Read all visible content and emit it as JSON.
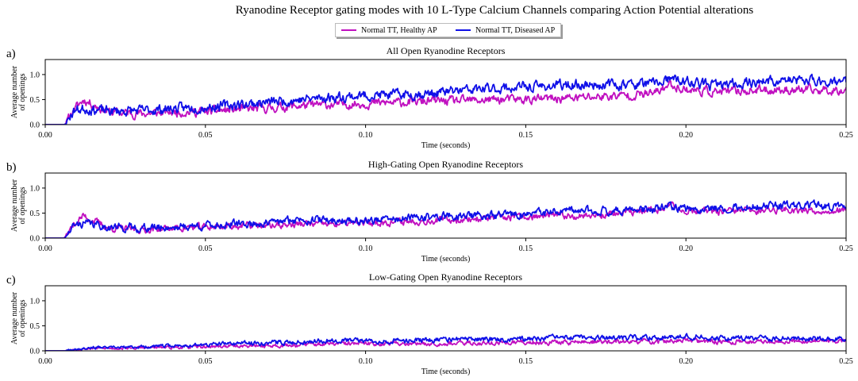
{
  "title": "Ryanodine Receptor gating modes with 10 L-Type Calcium Channels comparing Action Potential alterations",
  "legend": [
    {
      "name": "Normal TT, Healthy AP",
      "color": "#c010c0"
    },
    {
      "name": "Normal TT, Diseased AP",
      "color": "#1010e8"
    }
  ],
  "chart_data": [
    {
      "type": "line",
      "panel_label": "a)",
      "title": "All Open Ryanodine Receptors",
      "xlabel": "Time (seconds)",
      "ylabel": [
        "Average number",
        "of openings"
      ],
      "xlim": [
        0.0,
        0.25
      ],
      "ylim": [
        0.0,
        1.3
      ],
      "xticks": [
        "0.00",
        "0.05",
        "0.10",
        "0.15",
        "0.20",
        "0.25"
      ],
      "yticks": [
        "0.0",
        "0.5",
        "1.0"
      ],
      "series": [
        {
          "name": "Normal TT, Healthy AP",
          "color": "#c010c0",
          "x": [
            0.0,
            0.006,
            0.009,
            0.012,
            0.015,
            0.02,
            0.03,
            0.04,
            0.05,
            0.06,
            0.07,
            0.08,
            0.09,
            0.1,
            0.11,
            0.12,
            0.13,
            0.14,
            0.15,
            0.16,
            0.17,
            0.18,
            0.19,
            0.195,
            0.2,
            0.21,
            0.22,
            0.23,
            0.24,
            0.25
          ],
          "y": [
            0.0,
            0.0,
            0.3,
            0.5,
            0.4,
            0.25,
            0.22,
            0.25,
            0.26,
            0.3,
            0.33,
            0.38,
            0.4,
            0.42,
            0.44,
            0.47,
            0.47,
            0.5,
            0.5,
            0.52,
            0.55,
            0.58,
            0.62,
            0.8,
            0.7,
            0.65,
            0.68,
            0.7,
            0.68,
            0.7
          ],
          "noise": 0.09,
          "seed": 11
        },
        {
          "name": "Normal TT, Diseased AP",
          "color": "#1010e8",
          "x": [
            0.0,
            0.006,
            0.009,
            0.012,
            0.015,
            0.02,
            0.03,
            0.04,
            0.05,
            0.06,
            0.07,
            0.08,
            0.09,
            0.1,
            0.11,
            0.12,
            0.13,
            0.14,
            0.15,
            0.16,
            0.17,
            0.18,
            0.19,
            0.195,
            0.2,
            0.21,
            0.22,
            0.23,
            0.24,
            0.25
          ],
          "y": [
            0.0,
            0.0,
            0.28,
            0.32,
            0.3,
            0.27,
            0.28,
            0.32,
            0.35,
            0.4,
            0.45,
            0.5,
            0.55,
            0.58,
            0.6,
            0.62,
            0.68,
            0.72,
            0.75,
            0.78,
            0.8,
            0.8,
            0.82,
            0.9,
            0.85,
            0.78,
            0.85,
            0.88,
            0.88,
            0.85
          ],
          "noise": 0.1,
          "seed": 23
        }
      ]
    },
    {
      "type": "line",
      "panel_label": "b)",
      "title": "High-Gating Open Ryanodine Receptors",
      "xlabel": "Time (seconds)",
      "ylabel": [
        "Average number",
        "of openings"
      ],
      "xlim": [
        0.0,
        0.25
      ],
      "ylim": [
        0.0,
        1.3
      ],
      "xticks": [
        "0.00",
        "0.05",
        "0.10",
        "0.15",
        "0.20",
        "0.25"
      ],
      "yticks": [
        "0.0",
        "0.5",
        "1.0"
      ],
      "series": [
        {
          "name": "Normal TT, Healthy AP",
          "color": "#c010c0",
          "x": [
            0.0,
            0.006,
            0.009,
            0.012,
            0.015,
            0.02,
            0.03,
            0.04,
            0.05,
            0.06,
            0.07,
            0.08,
            0.09,
            0.1,
            0.11,
            0.12,
            0.13,
            0.14,
            0.15,
            0.16,
            0.17,
            0.18,
            0.19,
            0.195,
            0.2,
            0.21,
            0.22,
            0.23,
            0.24,
            0.25
          ],
          "y": [
            0.0,
            0.0,
            0.28,
            0.45,
            0.35,
            0.2,
            0.17,
            0.2,
            0.22,
            0.25,
            0.25,
            0.28,
            0.28,
            0.3,
            0.33,
            0.35,
            0.38,
            0.4,
            0.42,
            0.45,
            0.45,
            0.5,
            0.55,
            0.65,
            0.55,
            0.52,
            0.55,
            0.58,
            0.55,
            0.55
          ],
          "noise": 0.07,
          "seed": 37
        },
        {
          "name": "Normal TT, Diseased AP",
          "color": "#1010e8",
          "x": [
            0.0,
            0.006,
            0.009,
            0.012,
            0.015,
            0.02,
            0.03,
            0.04,
            0.05,
            0.06,
            0.07,
            0.08,
            0.09,
            0.1,
            0.11,
            0.12,
            0.13,
            0.14,
            0.15,
            0.16,
            0.17,
            0.18,
            0.19,
            0.195,
            0.2,
            0.21,
            0.22,
            0.23,
            0.24,
            0.25
          ],
          "y": [
            0.0,
            0.0,
            0.25,
            0.3,
            0.28,
            0.22,
            0.2,
            0.22,
            0.25,
            0.28,
            0.3,
            0.38,
            0.35,
            0.35,
            0.38,
            0.42,
            0.45,
            0.45,
            0.48,
            0.52,
            0.55,
            0.55,
            0.58,
            0.62,
            0.58,
            0.6,
            0.62,
            0.65,
            0.65,
            0.62
          ],
          "noise": 0.08,
          "seed": 41
        }
      ]
    },
    {
      "type": "line",
      "panel_label": "c)",
      "title": "Low-Gating Open Ryanodine Receptors",
      "xlabel": "Time (seconds)",
      "ylabel": [
        "Average number",
        "of openings"
      ],
      "xlim": [
        0.0,
        0.25
      ],
      "ylim": [
        0.0,
        1.3
      ],
      "xticks": [
        "0.00",
        "0.05",
        "0.10",
        "0.15",
        "0.20",
        "0.25"
      ],
      "yticks": [
        "0.0",
        "0.5",
        "1.0"
      ],
      "series": [
        {
          "name": "Normal TT, Healthy AP",
          "color": "#c010c0",
          "x": [
            0.0,
            0.006,
            0.009,
            0.015,
            0.02,
            0.03,
            0.04,
            0.05,
            0.06,
            0.07,
            0.08,
            0.09,
            0.1,
            0.11,
            0.12,
            0.13,
            0.14,
            0.15,
            0.16,
            0.17,
            0.18,
            0.19,
            0.2,
            0.21,
            0.22,
            0.23,
            0.24,
            0.25
          ],
          "y": [
            0.0,
            0.0,
            0.03,
            0.05,
            0.05,
            0.06,
            0.07,
            0.08,
            0.1,
            0.1,
            0.12,
            0.14,
            0.14,
            0.15,
            0.15,
            0.15,
            0.16,
            0.17,
            0.17,
            0.18,
            0.18,
            0.19,
            0.2,
            0.18,
            0.18,
            0.2,
            0.2,
            0.2
          ],
          "noise": 0.05,
          "seed": 53
        },
        {
          "name": "Normal TT, Diseased AP",
          "color": "#1010e8",
          "x": [
            0.0,
            0.006,
            0.009,
            0.015,
            0.02,
            0.03,
            0.04,
            0.05,
            0.06,
            0.07,
            0.08,
            0.09,
            0.1,
            0.11,
            0.12,
            0.13,
            0.14,
            0.15,
            0.16,
            0.17,
            0.18,
            0.19,
            0.2,
            0.21,
            0.22,
            0.23,
            0.24,
            0.25
          ],
          "y": [
            0.0,
            0.0,
            0.04,
            0.07,
            0.06,
            0.08,
            0.1,
            0.12,
            0.15,
            0.16,
            0.18,
            0.22,
            0.2,
            0.2,
            0.22,
            0.23,
            0.23,
            0.24,
            0.26,
            0.26,
            0.25,
            0.27,
            0.3,
            0.25,
            0.26,
            0.25,
            0.25,
            0.24
          ],
          "noise": 0.05,
          "seed": 67
        }
      ]
    }
  ]
}
